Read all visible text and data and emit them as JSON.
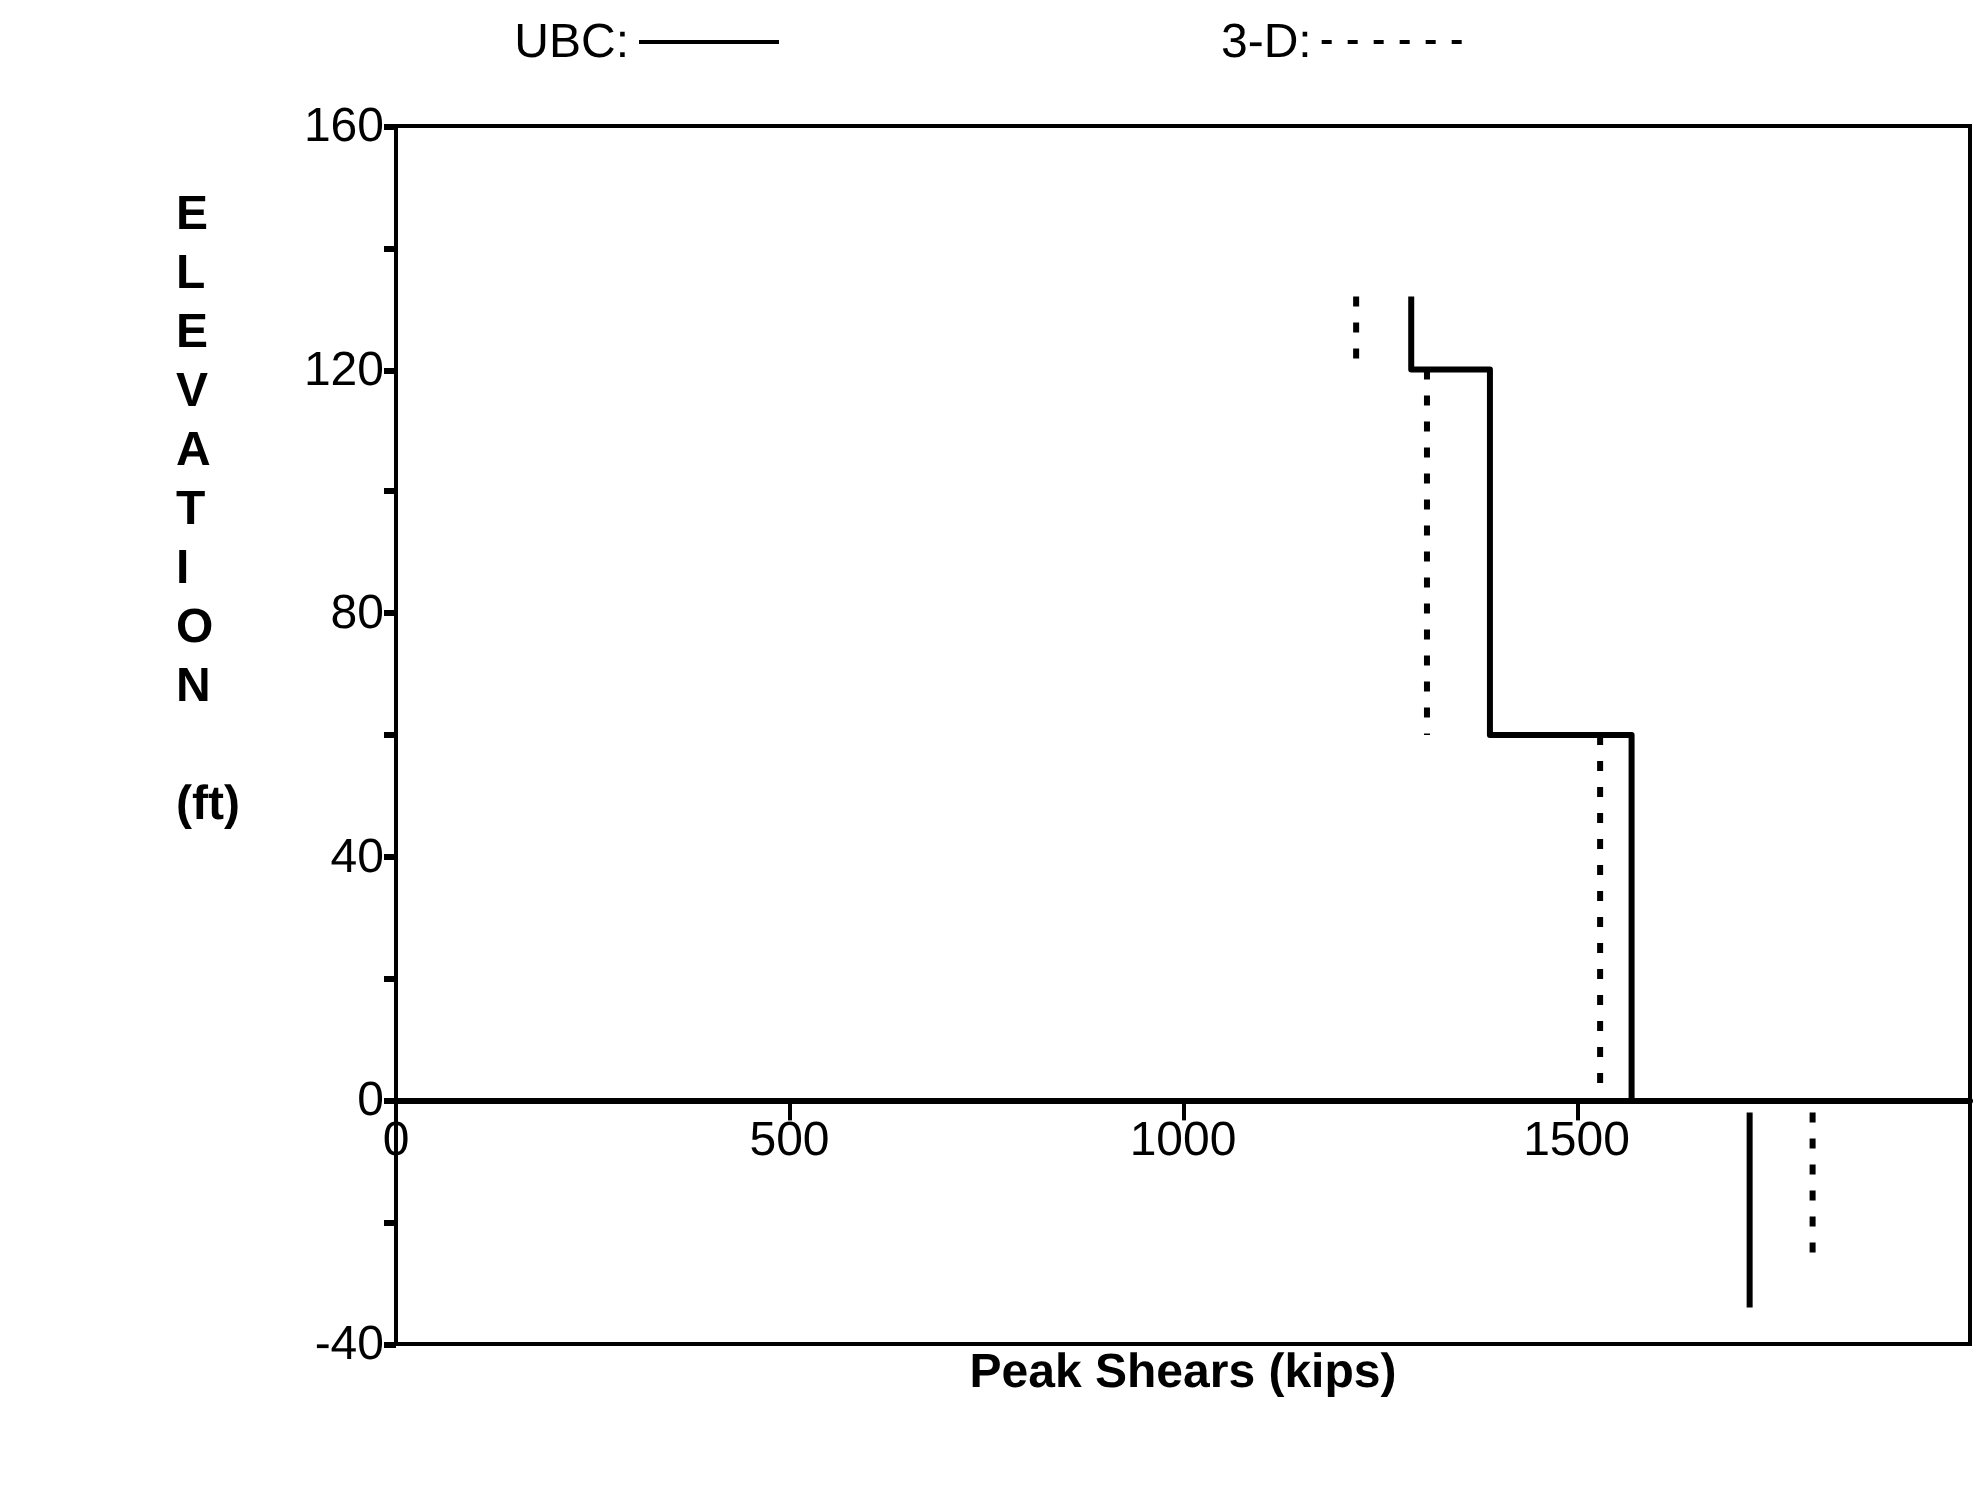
{
  "chart_data": {
    "type": "line",
    "xlabel": "Peak Shears (kips)",
    "ylabel": "ELEVATION (ft)",
    "series": [
      {
        "name": "UBC:",
        "color": "#000000",
        "line_style": "solid",
        "x": [
          1290,
          1290,
          1390,
          1390,
          1570,
          1570,
          null,
          1720,
          1720
        ],
        "values": [
          132,
          120,
          120,
          60,
          60,
          0,
          null,
          -2,
          -34
        ]
      },
      {
        "name": "3-D:",
        "color": "#000000",
        "line_style": "dotted",
        "x": [
          1220,
          1220,
          null,
          1310,
          1310,
          null,
          1530,
          1530,
          null,
          1800,
          1800
        ],
        "values": [
          132,
          120,
          null,
          120,
          60,
          null,
          60,
          0,
          null,
          -2,
          -26
        ]
      }
    ],
    "xlim": [
      0,
      2000
    ],
    "xticks": [
      0,
      500,
      1000,
      1500
    ],
    "ylim": [
      -40,
      160
    ],
    "yticks": [
      -40,
      {
        "value": -20,
        "label": null
      },
      0,
      {
        "value": 20,
        "label": null
      },
      40,
      {
        "value": 60,
        "label": null
      },
      80,
      {
        "value": 100,
        "label": null
      },
      120,
      {
        "value": 140,
        "label": null
      },
      160
    ],
    "grid": false,
    "legend": "top",
    "marker": "none"
  }
}
